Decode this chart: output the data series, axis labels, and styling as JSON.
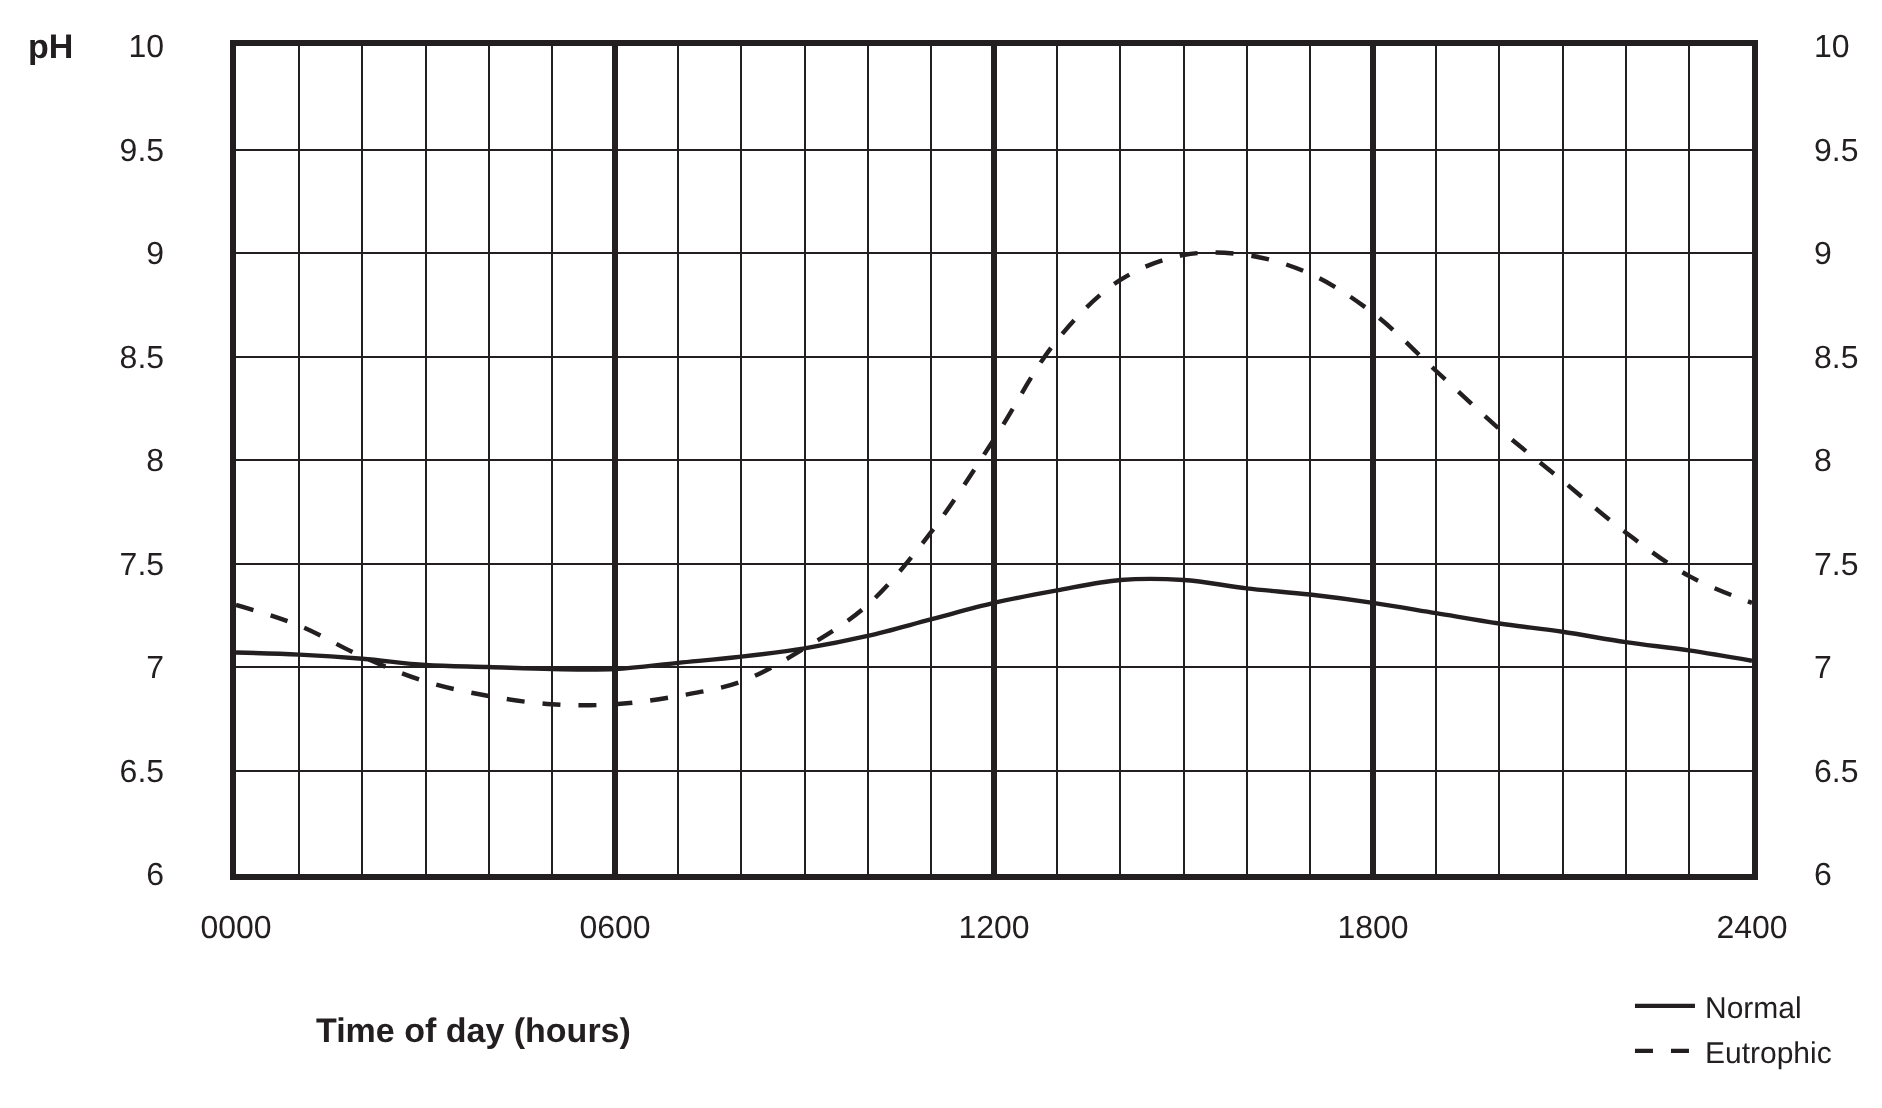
{
  "chart_data": {
    "type": "line",
    "xlabel": "Time of day (hours)",
    "ylabel": "pH",
    "x": [
      0,
      100,
      200,
      300,
      400,
      500,
      600,
      700,
      800,
      900,
      1000,
      1100,
      1200,
      1300,
      1400,
      1500,
      1600,
      1700,
      1800,
      1900,
      2000,
      2100,
      2200,
      2300,
      2400
    ],
    "series": [
      {
        "name": "Normal",
        "color": "#231f20",
        "line_style": "solid",
        "values": [
          7.07,
          7.06,
          7.04,
          7.01,
          7.0,
          6.99,
          6.99,
          7.02,
          7.05,
          7.09,
          7.15,
          7.23,
          7.31,
          7.37,
          7.42,
          7.42,
          7.38,
          7.35,
          7.31,
          7.26,
          7.21,
          7.17,
          7.12,
          7.08,
          7.03
        ]
      },
      {
        "name": "Eutrophic",
        "color": "#231f20",
        "line_style": "dashed",
        "values": [
          7.3,
          7.2,
          7.05,
          6.93,
          6.86,
          6.82,
          6.82,
          6.86,
          6.93,
          7.09,
          7.3,
          7.65,
          8.1,
          8.58,
          8.87,
          8.99,
          8.99,
          8.9,
          8.71,
          8.43,
          8.15,
          7.9,
          7.65,
          7.44,
          7.31
        ]
      }
    ],
    "xlim": [
      0,
      2400
    ],
    "xticks": [
      {
        "value": 0,
        "label": "0000"
      },
      {
        "value": 600,
        "label": "0600"
      },
      {
        "value": 1200,
        "label": "1200"
      },
      {
        "value": 1800,
        "label": "1800"
      },
      {
        "value": 2400,
        "label": "2400"
      }
    ],
    "ylim": [
      6,
      10
    ],
    "yticks": [
      6,
      6.5,
      7,
      7.5,
      8,
      8.5,
      9,
      9.5,
      10
    ],
    "y2lim": [
      6,
      10
    ],
    "y2ticks": [
      6,
      6.5,
      7,
      7.5,
      8,
      8.5,
      9,
      9.5,
      10
    ],
    "grid": true,
    "legend": "bottom right",
    "marker": "none"
  }
}
